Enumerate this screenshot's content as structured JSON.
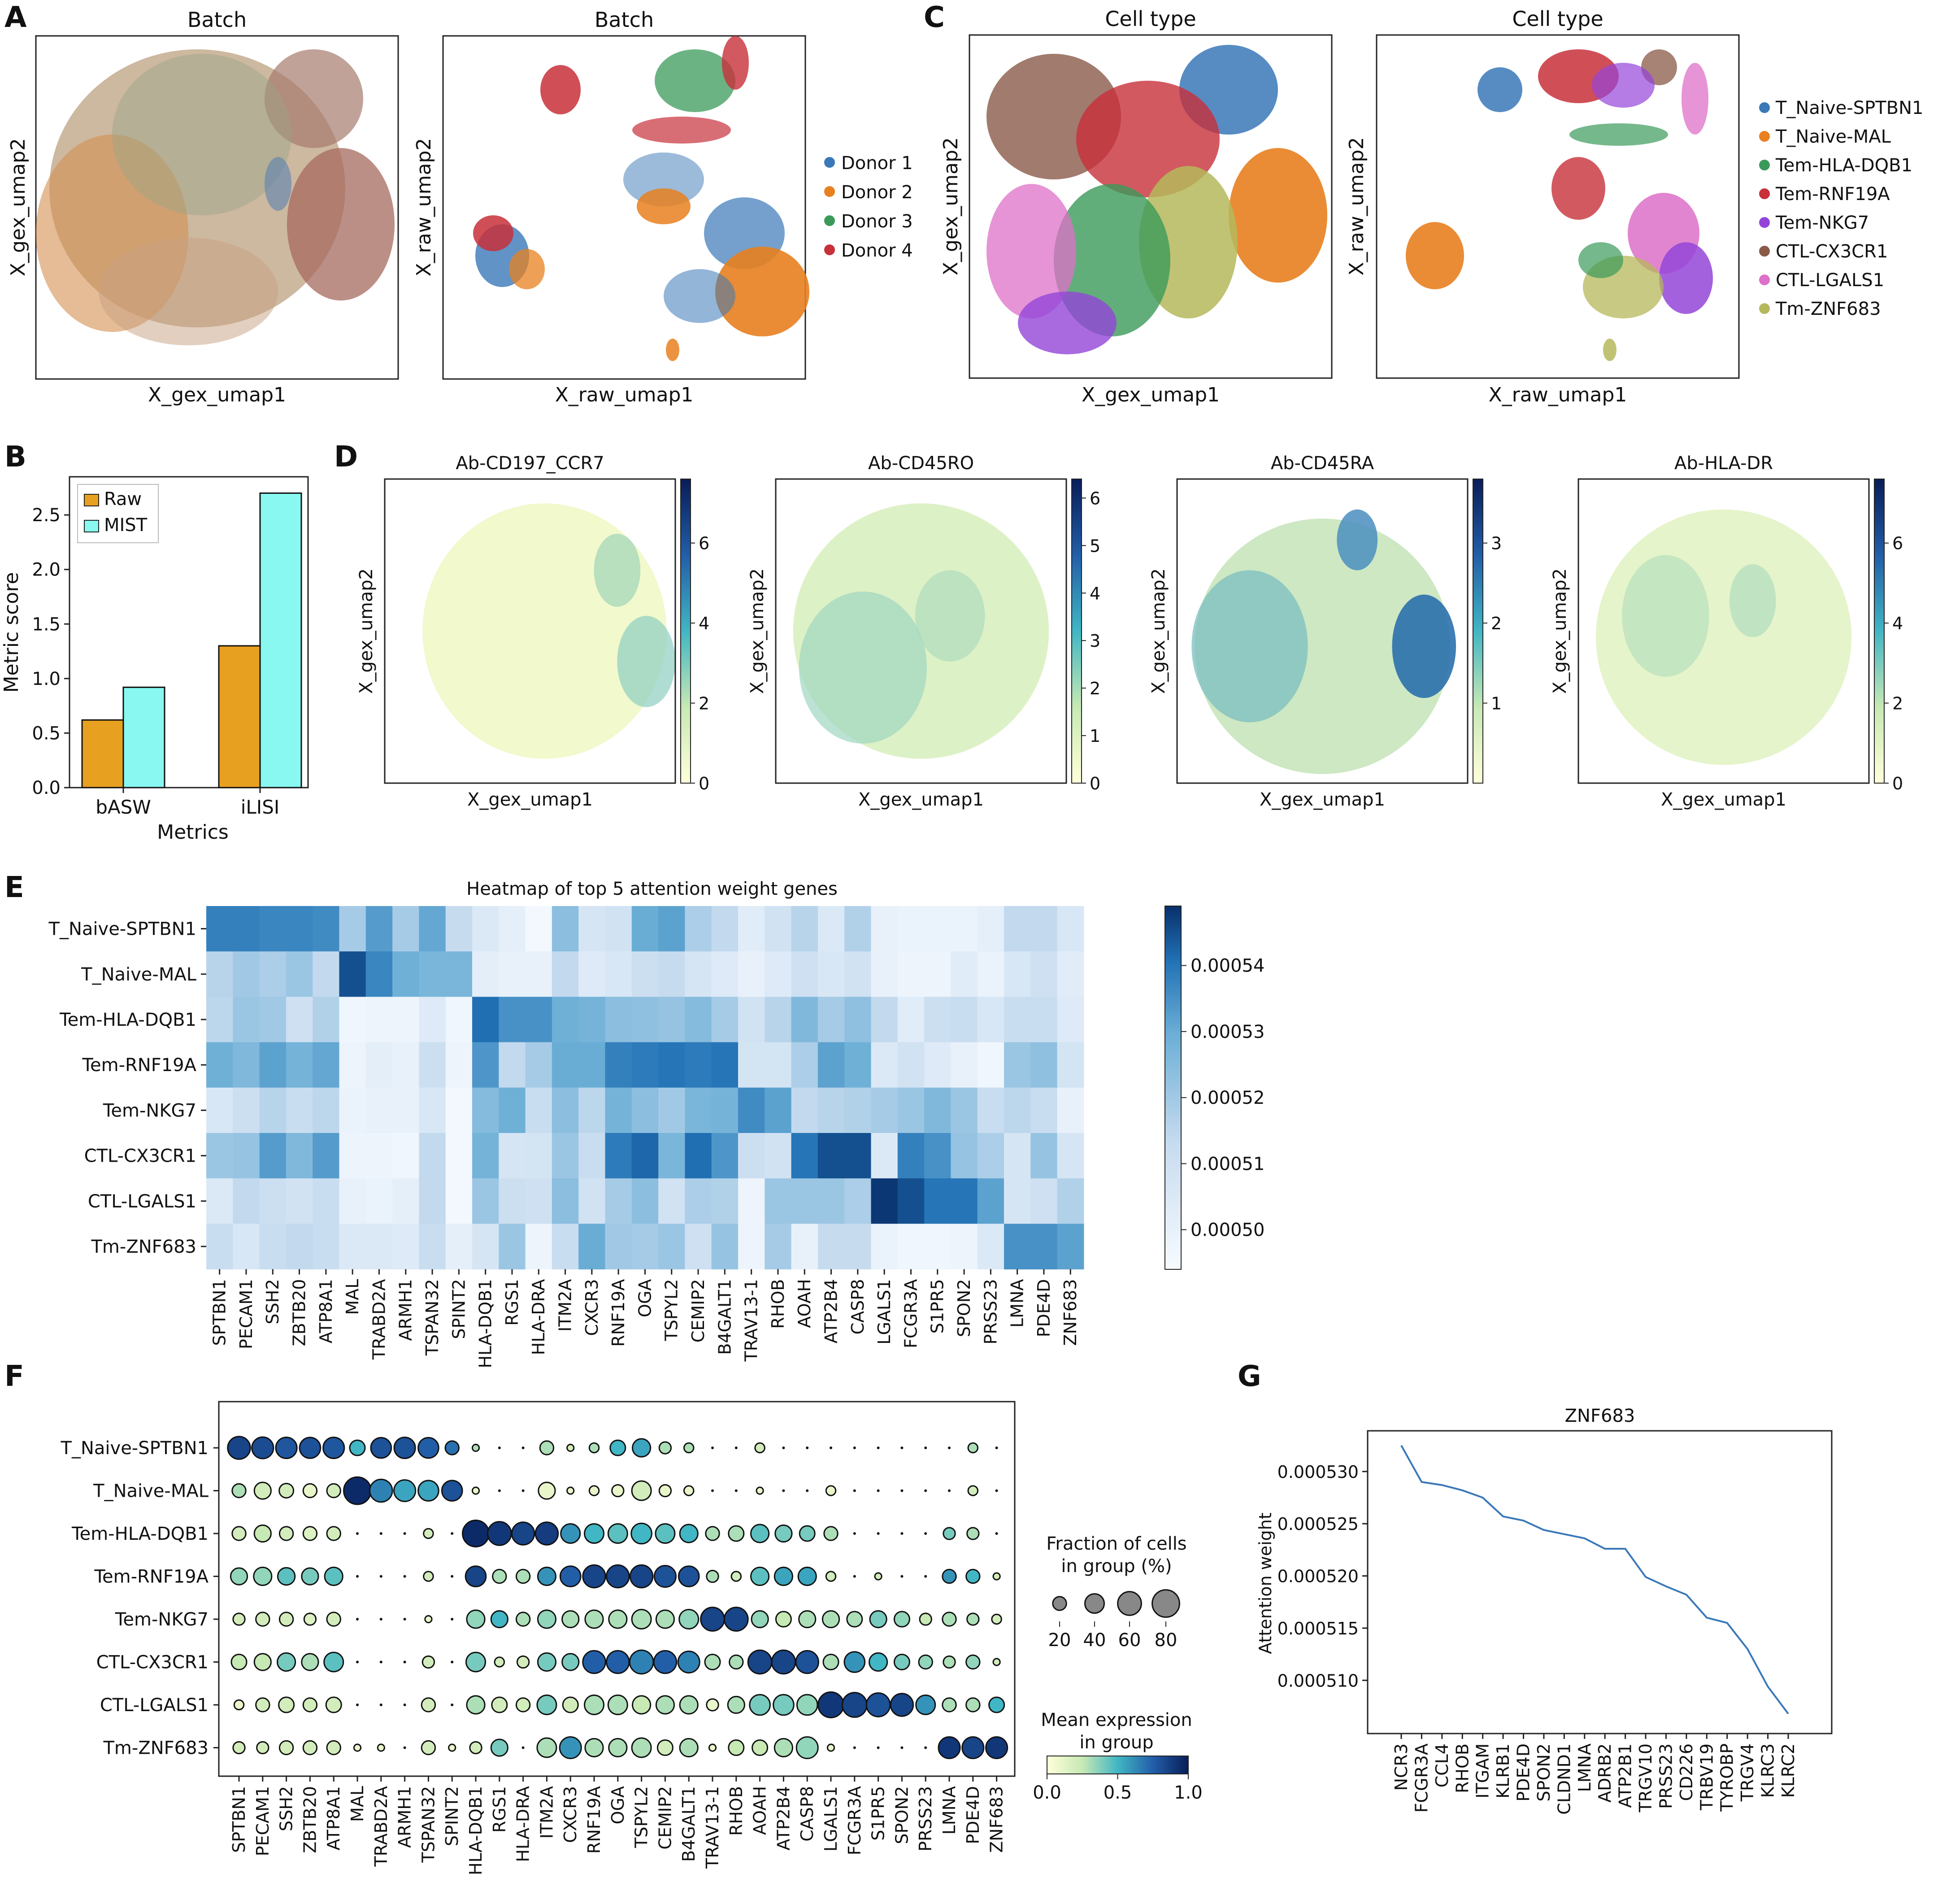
{
  "panel_letters": [
    "A",
    "B",
    "C",
    "D",
    "E",
    "F",
    "G"
  ],
  "cell_types": [
    "T_Naive-SPTBN1",
    "T_Naive-MAL",
    "Tem-HLA-DQB1",
    "Tem-RNF19A",
    "Tem-NKG7",
    "CTL-CX3CR1",
    "CTL-LGALS1",
    "Tm-ZNF683"
  ],
  "cell_type_colors": [
    "#3a78b8",
    "#e8801f",
    "#3b9a5a",
    "#c8303a",
    "#9445d8",
    "#8a5a48",
    "#dd70c8",
    "#b5b85a"
  ],
  "genes": [
    "SPTBN1",
    "PECAM1",
    "SSH2",
    "ZBTB20",
    "ATP8A1",
    "MAL",
    "TRABD2A",
    "ARMH1",
    "TSPAN32",
    "SPINT2",
    "HLA-DQB1",
    "RGS1",
    "HLA-DRA",
    "ITM2A",
    "CXCR3",
    "RNF19A",
    "OGA",
    "TSPYL2",
    "CEMIP2",
    "B4GALT1",
    "TRAV13-1",
    "RHOB",
    "AOAH",
    "ATP2B4",
    "CASP8",
    "LGALS1",
    "FCGR3A",
    "S1PR5",
    "SPON2",
    "PRSS23",
    "LMNA",
    "PDE4D",
    "ZNF683"
  ],
  "panelA": {
    "title_left": "Batch",
    "title_right": "Batch",
    "xlabel_left": "X_gex_umap1",
    "ylabel_left": "X_gex_umap2",
    "xlabel_right": "X_raw_umap1",
    "ylabel_right": "X_raw_umap2",
    "legend": [
      "Donor 1",
      "Donor 2",
      "Donor 3",
      "Donor 4"
    ],
    "legend_colors": [
      "#3a78b8",
      "#e8801f",
      "#3b9a5a",
      "#c8303a"
    ]
  },
  "panelC": {
    "title_left": "Cell type",
    "title_right": "Cell type",
    "xlabel_left": "X_gex_umap1",
    "ylabel_left": "X_gex_umap2",
    "xlabel_right": "X_raw_umap1",
    "ylabel_right": "X_raw_umap2"
  },
  "panelD": {
    "plots": [
      {
        "title": "Ab-CD197_CCR7",
        "ticks": [
          "0",
          "2",
          "4",
          "6"
        ],
        "max": 7.6
      },
      {
        "title": "Ab-CD45RO",
        "ticks": [
          "0",
          "1",
          "2",
          "3",
          "4",
          "5",
          "6"
        ],
        "max": 6.4
      },
      {
        "title": "Ab-CD45RA",
        "ticks": [
          "1",
          "2",
          "3"
        ],
        "max": 3.8
      },
      {
        "title": "Ab-HLA-DR",
        "ticks": [
          "0",
          "2",
          "4",
          "6"
        ],
        "max": 7.6
      }
    ],
    "xlabel": "X_gex_umap1",
    "ylabel": "X_gex_umap2"
  },
  "chart_data": [
    {
      "type": "bar",
      "panel": "B",
      "categories": [
        "bASW",
        "iLISI"
      ],
      "series": [
        {
          "name": "Raw",
          "values": [
            0.62,
            1.3
          ],
          "color": "#e8a020"
        },
        {
          "name": "MIST",
          "values": [
            0.92,
            2.7
          ],
          "color": "#88f8f0"
        }
      ],
      "xlabel": "Metrics",
      "ylabel": "Metric score",
      "ylim": [
        0,
        2.85
      ],
      "yticks": [
        "0.0",
        "0.5",
        "1.0",
        "1.5",
        "2.0",
        "2.5"
      ],
      "legend_position": "top-left"
    },
    {
      "type": "heatmap",
      "panel": "E",
      "title": "Heatmap of top 5 attention weight genes",
      "colorbar_ticks": [
        "0.00050",
        "0.00051",
        "0.00052",
        "0.00053",
        "0.00054"
      ],
      "vmin": 0.000494,
      "vmax": 0.000549,
      "values": [
        [
          0.000538,
          0.000538,
          0.000537,
          0.000537,
          0.000536,
          0.000519,
          0.000533,
          0.000519,
          0.000531,
          0.000513,
          0.000505,
          0.000501,
          0.000496,
          0.000524,
          0.000507,
          0.000509,
          0.00053,
          0.000532,
          0.000518,
          0.000514,
          0.000503,
          0.000509,
          0.000516,
          0.000505,
          0.000517,
          0.0005,
          0.000499,
          0.000499,
          0.000499,
          0.000501,
          0.000514,
          0.000514,
          0.000506
        ],
        [
          0.000516,
          0.00052,
          0.000518,
          0.000521,
          0.000514,
          0.000545,
          0.000537,
          0.000529,
          0.000527,
          0.000527,
          0.000502,
          0.0005,
          0.0005,
          0.000514,
          0.000504,
          0.000506,
          0.000511,
          0.000513,
          0.000507,
          0.000504,
          0.0005,
          0.000504,
          0.00051,
          0.000506,
          0.000509,
          0.0005,
          0.000498,
          0.000498,
          0.000503,
          0.000499,
          0.000506,
          0.00051,
          0.000503
        ],
        [
          0.000515,
          0.000521,
          0.00052,
          0.00051,
          0.000517,
          0.000497,
          0.000498,
          0.000498,
          0.000504,
          0.000497,
          0.000541,
          0.000535,
          0.000535,
          0.000529,
          0.000528,
          0.000524,
          0.000523,
          0.000522,
          0.000525,
          0.000519,
          0.000509,
          0.000516,
          0.000526,
          0.000519,
          0.000523,
          0.000514,
          0.000503,
          0.000511,
          0.000512,
          0.000506,
          0.000512,
          0.000512,
          0.000504
        ],
        [
          0.000529,
          0.000526,
          0.000532,
          0.000528,
          0.000531,
          0.000498,
          0.000502,
          0.0005,
          0.000511,
          0.000498,
          0.000534,
          0.000514,
          0.000519,
          0.00053,
          0.00053,
          0.000538,
          0.000539,
          0.00054,
          0.000539,
          0.00054,
          0.000508,
          0.000508,
          0.000518,
          0.000532,
          0.000529,
          0.000505,
          0.000509,
          0.000504,
          0.0005,
          0.000497,
          0.000521,
          0.000523,
          0.000508
        ],
        [
          0.000506,
          0.000511,
          0.000516,
          0.000512,
          0.000515,
          0.000499,
          0.0005,
          0.0005,
          0.000506,
          0.000496,
          0.000525,
          0.000529,
          0.000512,
          0.000524,
          0.000515,
          0.000528,
          0.000524,
          0.00052,
          0.000527,
          0.000528,
          0.000536,
          0.000532,
          0.000514,
          0.000516,
          0.000517,
          0.000519,
          0.000521,
          0.000526,
          0.000521,
          0.000512,
          0.000515,
          0.000512,
          0.0005
        ],
        [
          0.000521,
          0.000522,
          0.000533,
          0.000526,
          0.000533,
          0.000498,
          0.000498,
          0.000497,
          0.000514,
          0.000496,
          0.000528,
          0.000507,
          0.000508,
          0.000521,
          0.000512,
          0.000539,
          0.000542,
          0.000527,
          0.000541,
          0.000534,
          0.000511,
          0.000509,
          0.00054,
          0.000545,
          0.000545,
          0.000505,
          0.000538,
          0.000535,
          0.000522,
          0.000518,
          0.000507,
          0.000522,
          0.000507
        ],
        [
          0.000505,
          0.000514,
          0.000511,
          0.000509,
          0.000512,
          0.0005,
          0.000499,
          0.000501,
          0.000514,
          0.000496,
          0.000521,
          0.000511,
          0.00051,
          0.000524,
          0.000509,
          0.000519,
          0.000524,
          0.000509,
          0.000518,
          0.000517,
          0.000498,
          0.000521,
          0.000521,
          0.000521,
          0.000518,
          0.000548,
          0.000545,
          0.00054,
          0.00054,
          0.000532,
          0.000507,
          0.00051,
          0.000517
        ],
        [
          0.000512,
          0.000506,
          0.000512,
          0.000514,
          0.000512,
          0.000505,
          0.000505,
          0.000504,
          0.000512,
          0.000501,
          0.000507,
          0.000521,
          0.000498,
          0.000512,
          0.00053,
          0.00052,
          0.000519,
          0.000521,
          0.00051,
          0.000522,
          0.000498,
          0.000519,
          0.0005,
          0.000513,
          0.000513,
          0.000499,
          0.000497,
          0.000497,
          0.000498,
          0.000505,
          0.000535,
          0.000535,
          0.000532
        ]
      ]
    },
    {
      "type": "scatter",
      "panel": "F",
      "subtype": "dotplot",
      "legend_size_title": [
        "Fraction of cells",
        "in group (%)"
      ],
      "legend_size_values": [
        20,
        40,
        60,
        80
      ],
      "legend_color_title": [
        "Mean expression",
        "in group"
      ],
      "colorbar_ticks": [
        "0.0",
        "0.5",
        "1.0"
      ],
      "fraction": [
        [
          55,
          50,
          48,
          47,
          48,
          25,
          45,
          48,
          45,
          20,
          5,
          0,
          0,
          20,
          5,
          10,
          25,
          35,
          15,
          10,
          0,
          0,
          10,
          0,
          0,
          0,
          0,
          0,
          0,
          0,
          0,
          10,
          0
        ],
        [
          20,
          30,
          22,
          20,
          20,
          80,
          55,
          50,
          45,
          45,
          5,
          0,
          0,
          30,
          5,
          10,
          15,
          40,
          15,
          10,
          0,
          0,
          5,
          0,
          0,
          10,
          0,
          0,
          0,
          0,
          0,
          10,
          0
        ],
        [
          20,
          30,
          20,
          20,
          20,
          0,
          0,
          0,
          10,
          0,
          75,
          60,
          55,
          55,
          40,
          40,
          40,
          45,
          40,
          35,
          20,
          25,
          35,
          30,
          25,
          20,
          0,
          0,
          0,
          0,
          15,
          15,
          0
        ],
        [
          30,
          35,
          32,
          30,
          35,
          0,
          0,
          0,
          10,
          0,
          45,
          20,
          20,
          35,
          45,
          55,
          55,
          55,
          50,
          45,
          15,
          10,
          35,
          35,
          35,
          10,
          0,
          5,
          0,
          0,
          20,
          20,
          5
        ],
        [
          15,
          20,
          20,
          15,
          20,
          0,
          0,
          0,
          5,
          0,
          35,
          30,
          20,
          35,
          30,
          35,
          35,
          40,
          35,
          40,
          60,
          60,
          30,
          25,
          30,
          30,
          25,
          30,
          25,
          15,
          20,
          15,
          10
        ],
        [
          25,
          30,
          35,
          30,
          40,
          0,
          0,
          0,
          15,
          0,
          40,
          10,
          15,
          35,
          30,
          55,
          55,
          60,
          55,
          50,
          25,
          20,
          60,
          60,
          55,
          25,
          45,
          35,
          25,
          20,
          15,
          20,
          5
        ],
        [
          10,
          20,
          25,
          20,
          25,
          0,
          0,
          0,
          20,
          0,
          35,
          25,
          20,
          40,
          25,
          40,
          40,
          35,
          35,
          35,
          15,
          30,
          45,
          45,
          45,
          70,
          65,
          60,
          55,
          40,
          20,
          20,
          25
        ],
        [
          15,
          15,
          20,
          20,
          20,
          5,
          5,
          0,
          20,
          5,
          15,
          30,
          0,
          40,
          50,
          35,
          35,
          40,
          25,
          35,
          5,
          25,
          25,
          35,
          50,
          5,
          0,
          0,
          0,
          0,
          50,
          50,
          50
        ]
      ],
      "mean_expression": [
        [
          0.85,
          0.82,
          0.78,
          0.8,
          0.78,
          0.5,
          0.8,
          0.8,
          0.75,
          0.7,
          0.3,
          0,
          0,
          0.3,
          0.2,
          0.3,
          0.5,
          0.55,
          0.3,
          0.3,
          0,
          0,
          0.2,
          0,
          0,
          0,
          0,
          0,
          0,
          0,
          0,
          0.3,
          0
        ],
        [
          0.3,
          0.2,
          0.2,
          0.1,
          0.2,
          0.95,
          0.65,
          0.55,
          0.55,
          0.8,
          0.1,
          0,
          0,
          0.1,
          0.1,
          0.1,
          0.1,
          0.2,
          0.1,
          0.1,
          0,
          0,
          0.1,
          0,
          0,
          0.1,
          0,
          0,
          0,
          0,
          0,
          0.2,
          0
        ],
        [
          0.2,
          0.25,
          0.2,
          0.15,
          0.2,
          0,
          0,
          0,
          0.2,
          0,
          0.95,
          0.9,
          0.85,
          0.88,
          0.6,
          0.5,
          0.45,
          0.5,
          0.45,
          0.5,
          0.3,
          0.3,
          0.45,
          0.4,
          0.4,
          0.3,
          0,
          0,
          0,
          0,
          0.4,
          0.3,
          0
        ],
        [
          0.35,
          0.35,
          0.45,
          0.4,
          0.45,
          0,
          0,
          0,
          0.2,
          0,
          0.85,
          0.3,
          0.3,
          0.6,
          0.75,
          0.85,
          0.85,
          0.85,
          0.8,
          0.8,
          0.3,
          0.2,
          0.45,
          0.55,
          0.55,
          0.2,
          0,
          0.2,
          0,
          0,
          0.6,
          0.5,
          0.2
        ],
        [
          0.2,
          0.2,
          0.2,
          0.15,
          0.2,
          0,
          0,
          0,
          0.1,
          0,
          0.35,
          0.5,
          0.3,
          0.35,
          0.3,
          0.3,
          0.3,
          0.3,
          0.3,
          0.35,
          0.85,
          0.85,
          0.35,
          0.25,
          0.3,
          0.3,
          0.3,
          0.4,
          0.35,
          0.25,
          0.3,
          0.3,
          0.2
        ],
        [
          0.25,
          0.25,
          0.4,
          0.3,
          0.45,
          0,
          0,
          0,
          0.2,
          0,
          0.4,
          0.2,
          0.2,
          0.4,
          0.4,
          0.75,
          0.75,
          0.65,
          0.75,
          0.65,
          0.3,
          0.3,
          0.85,
          0.85,
          0.8,
          0.3,
          0.6,
          0.5,
          0.4,
          0.35,
          0.3,
          0.35,
          0.2
        ],
        [
          0.1,
          0.2,
          0.2,
          0.2,
          0.2,
          0,
          0,
          0,
          0.2,
          0,
          0.3,
          0.2,
          0.2,
          0.4,
          0.2,
          0.3,
          0.3,
          0.25,
          0.3,
          0.3,
          0.1,
          0.3,
          0.4,
          0.4,
          0.35,
          0.9,
          0.85,
          0.8,
          0.85,
          0.6,
          0.3,
          0.3,
          0.5
        ],
        [
          0.2,
          0.2,
          0.2,
          0.2,
          0.2,
          0.1,
          0.1,
          0,
          0.2,
          0.1,
          0.2,
          0.4,
          0,
          0.3,
          0.6,
          0.3,
          0.3,
          0.3,
          0.2,
          0.3,
          0.1,
          0.25,
          0.25,
          0.3,
          0.35,
          0.1,
          0,
          0,
          0,
          0,
          0.9,
          0.85,
          0.9
        ]
      ]
    },
    {
      "type": "line",
      "panel": "G",
      "title": "ZNF683",
      "ylabel": "Attention weight",
      "categories": [
        "NCR3",
        "FCGR3A",
        "CCL4",
        "RHOB",
        "ITGAM",
        "KLRB1",
        "PDE4D",
        "SPON2",
        "CLDND1",
        "LMNA",
        "ADRB2",
        "ATP2B1",
        "TRGV10",
        "PRSS23",
        "CD226",
        "TRBV19",
        "TYROBP",
        "TRGV4",
        "KLRC3",
        "KLRC2"
      ],
      "values": [
        0.0005325,
        0.000529,
        0.0005287,
        0.0005282,
        0.0005275,
        0.0005257,
        0.0005253,
        0.0005244,
        0.000524,
        0.0005236,
        0.0005226,
        0.0005226,
        0.0005199,
        0.000519,
        0.0005182,
        0.000516,
        0.0005155,
        0.000513,
        0.0005094,
        0.0005068
      ],
      "ylim": [
        0.0005049,
        0.0005339
      ],
      "yticks": [
        "0.000510",
        "0.000515",
        "0.000520",
        "0.000525",
        "0.000530"
      ],
      "color": "#3a78b8"
    }
  ]
}
